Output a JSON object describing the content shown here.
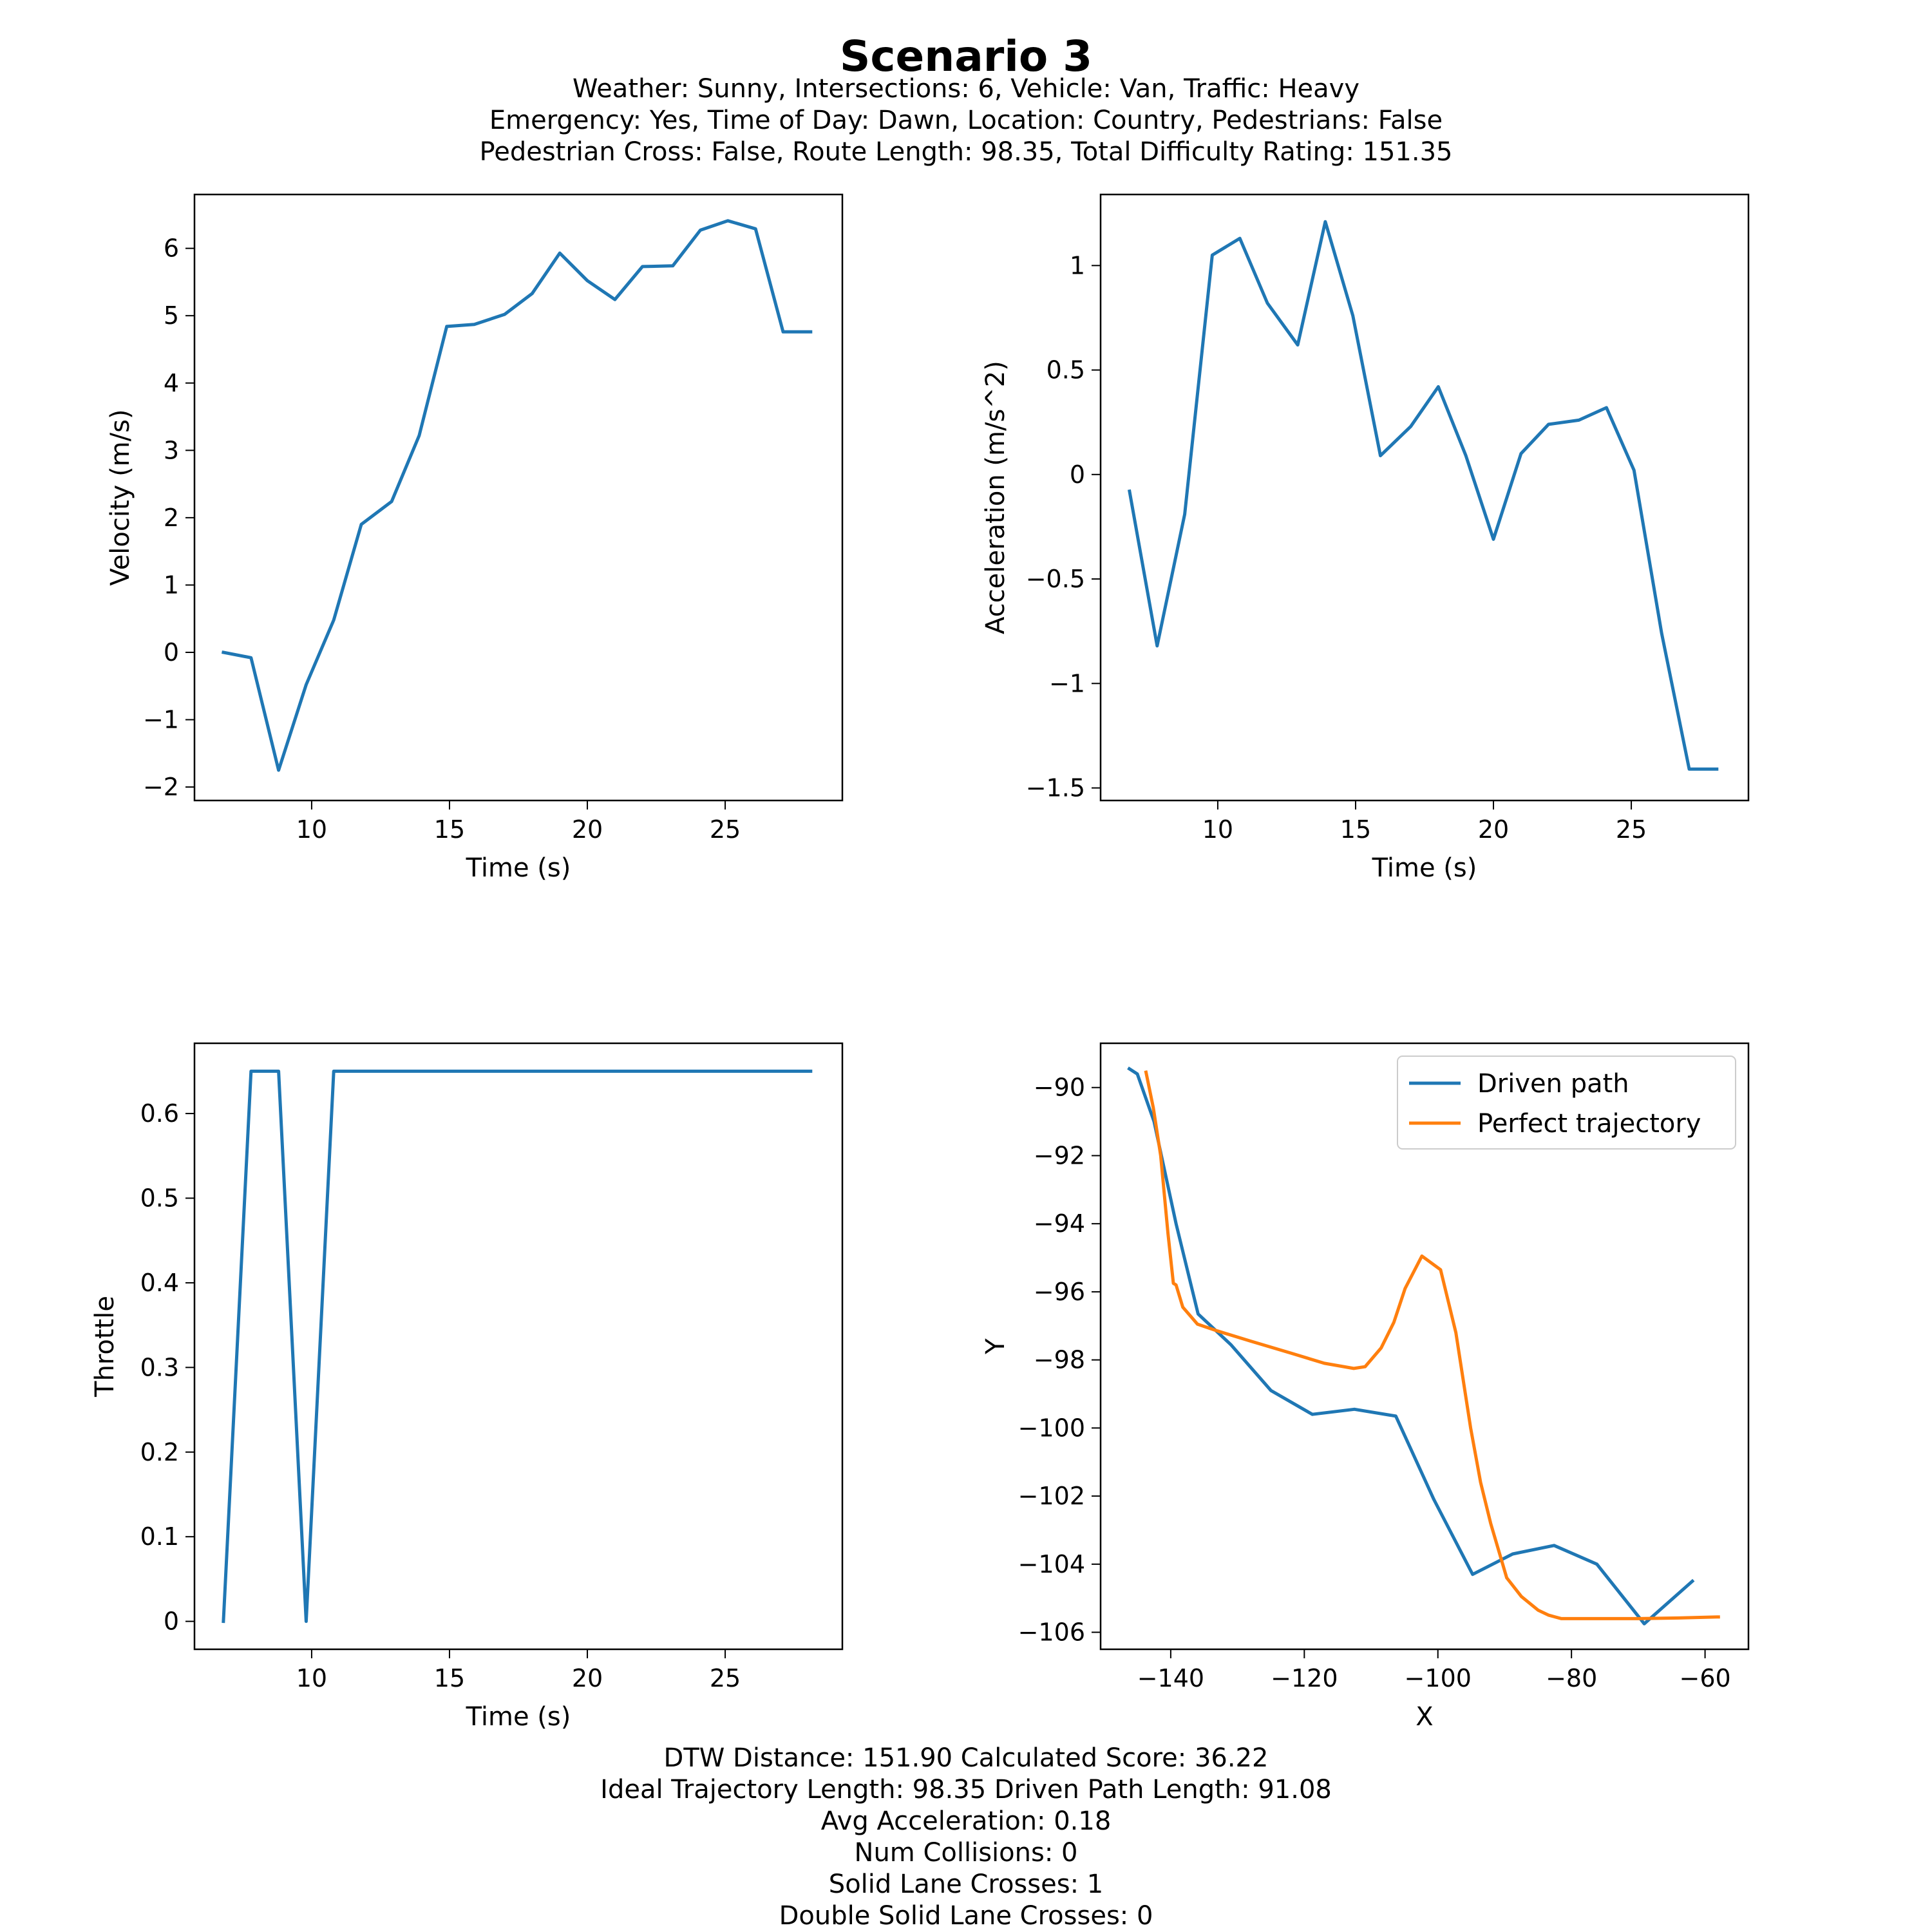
{
  "header": {
    "title": "Scenario 3",
    "lines": [
      "Weather: Sunny, Intersections: 6, Vehicle: Van, Traffic: Heavy",
      "Emergency: Yes, Time of Day: Dawn, Location: Country, Pedestrians: False",
      "Pedestrian Cross: False, Route Length: 98.35, Total Difficulty Rating: 151.35"
    ]
  },
  "footer": {
    "lines": [
      "DTW Distance: 151.90  Calculated Score: 36.22",
      "Ideal Trajectory Length: 98.35   Driven Path Length: 91.08",
      "Avg Acceleration: 0.18",
      "Num Collisions: 0",
      "Solid Lane Crosses: 1",
      "Double Solid Lane Crosses: 0"
    ]
  },
  "colors": {
    "blue": "#1f77b4",
    "orange": "#ff7f0e"
  },
  "chart_data": [
    {
      "type": "line",
      "xlabel": "Time (s)",
      "ylabel": "Velocity (m/s)",
      "xlim": [
        5.75,
        29.25
      ],
      "ylim": [
        -2.2,
        6.8
      ],
      "xticks": [
        10,
        15,
        20,
        25
      ],
      "yticks": [
        -2,
        -1,
        0,
        1,
        2,
        3,
        4,
        5,
        6
      ],
      "series": [
        {
          "color": "#1f77b4",
          "x": [
            6.8,
            7.8,
            8.8,
            9.8,
            10.8,
            11.8,
            12.9,
            13.9,
            14.9,
            15.9,
            17.0,
            18.0,
            19.0,
            20.0,
            21.0,
            22.0,
            23.1,
            24.1,
            25.1,
            26.1,
            27.1,
            28.1
          ],
          "y": [
            0.0,
            -0.08,
            -1.75,
            -0.48,
            0.48,
            1.9,
            2.24,
            3.22,
            4.84,
            4.87,
            5.02,
            5.33,
            5.93,
            5.52,
            5.24,
            5.73,
            5.74,
            6.27,
            6.41,
            6.29,
            4.76,
            4.76
          ]
        }
      ]
    },
    {
      "type": "line",
      "xlabel": "Time (s)",
      "ylabel": "Acceleration (m/s^2)",
      "xlim": [
        5.75,
        29.25
      ],
      "ylim": [
        -1.56,
        1.34
      ],
      "xticks": [
        10,
        15,
        20,
        25
      ],
      "yticks": [
        -1.5,
        -1.0,
        -0.5,
        0.0,
        0.5,
        1.0
      ],
      "series": [
        {
          "color": "#1f77b4",
          "x": [
            6.8,
            7.8,
            8.8,
            9.8,
            10.8,
            11.8,
            12.9,
            13.9,
            14.9,
            15.9,
            17.0,
            18.0,
            19.0,
            20.0,
            21.0,
            22.0,
            23.1,
            24.1,
            25.1,
            26.1,
            27.1,
            28.1
          ],
          "y": [
            -0.08,
            -0.82,
            -0.19,
            1.05,
            1.13,
            0.82,
            0.62,
            1.21,
            0.76,
            0.09,
            0.23,
            0.42,
            0.09,
            -0.31,
            0.1,
            0.24,
            0.26,
            0.32,
            0.02,
            -0.76,
            -1.41,
            -1.41
          ]
        }
      ]
    },
    {
      "type": "line",
      "xlabel": "Time (s)",
      "ylabel": "Throttle",
      "xlim": [
        5.75,
        29.25
      ],
      "ylim": [
        -0.033,
        0.683
      ],
      "xticks": [
        10,
        15,
        20,
        25
      ],
      "yticks": [
        0.0,
        0.1,
        0.2,
        0.3,
        0.4,
        0.5,
        0.6
      ],
      "series": [
        {
          "color": "#1f77b4",
          "x": [
            6.8,
            7.8,
            8.8,
            9.8,
            10.8,
            11.8,
            12.9,
            13.9,
            14.9,
            15.9,
            17.0,
            18.0,
            19.0,
            20.0,
            21.0,
            22.0,
            23.1,
            24.1,
            25.1,
            26.1,
            27.1,
            28.1
          ],
          "y": [
            0.0,
            0.65,
            0.65,
            0.0,
            0.65,
            0.65,
            0.65,
            0.65,
            0.65,
            0.65,
            0.65,
            0.65,
            0.65,
            0.65,
            0.65,
            0.65,
            0.65,
            0.65,
            0.65,
            0.65,
            0.65,
            0.65
          ]
        }
      ]
    },
    {
      "type": "line",
      "xlabel": "X",
      "ylabel": "Y",
      "xlim": [
        -150.5,
        -53.5
      ],
      "ylim": [
        -106.5,
        -88.7
      ],
      "xticks": [
        -140,
        -120,
        -100,
        -80,
        -60
      ],
      "yticks": [
        -90,
        -92,
        -94,
        -96,
        -98,
        -100,
        -102,
        -104,
        -106
      ],
      "legend": "top-right",
      "series": [
        {
          "name": "Driven path",
          "color": "#1f77b4",
          "x": [
            -146.2,
            -145.0,
            -142.5,
            -139.2,
            -135.9,
            -131.0,
            -125.0,
            -118.8,
            -112.5,
            -106.3,
            -100.6,
            -94.8,
            -88.8,
            -82.6,
            -76.2,
            -69.1,
            -61.9
          ],
          "y": [
            -89.45,
            -89.6,
            -91.0,
            -94.0,
            -96.65,
            -97.55,
            -98.9,
            -99.6,
            -99.45,
            -99.65,
            -102.1,
            -104.3,
            -103.7,
            -103.45,
            -104.0,
            -105.75,
            -104.5
          ]
        },
        {
          "name": "Perfect trajectory",
          "color": "#ff7f0e",
          "x": [
            -143.7,
            -142.6,
            -141.5,
            -140.4,
            -139.6,
            -139.2,
            -138.2,
            -136.0,
            -133.0,
            -128.0,
            -122.0,
            -117.0,
            -112.6,
            -110.9,
            -108.5,
            -106.6,
            -104.9,
            -102.4,
            -99.6,
            -97.3,
            -95.1,
            -93.6,
            -92.1,
            -89.7,
            -87.5,
            -85.0,
            -83.4,
            -81.5,
            -79.5,
            -75.0,
            -70.0,
            -64.0,
            -58.0
          ],
          "y": [
            -89.55,
            -90.6,
            -92.0,
            -94.3,
            -95.75,
            -95.8,
            -96.45,
            -96.95,
            -97.15,
            -97.45,
            -97.8,
            -98.1,
            -98.25,
            -98.2,
            -97.65,
            -96.9,
            -95.9,
            -94.95,
            -95.35,
            -97.2,
            -100.0,
            -101.6,
            -102.8,
            -104.4,
            -104.95,
            -105.35,
            -105.5,
            -105.6,
            -105.6,
            -105.6,
            -105.6,
            -105.58,
            -105.55
          ]
        }
      ]
    }
  ]
}
